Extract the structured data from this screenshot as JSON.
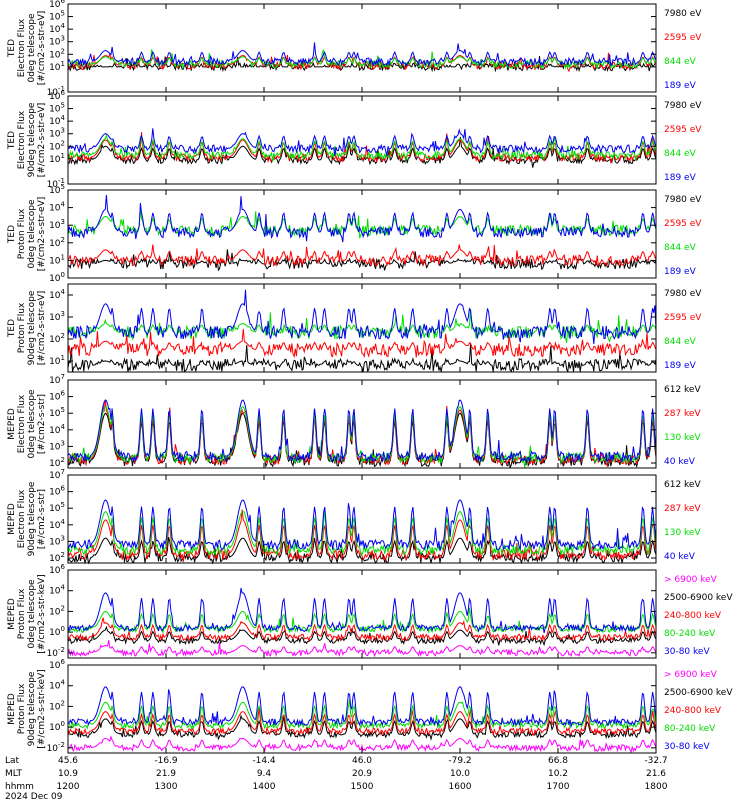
{
  "chart_data": {
    "type": "line",
    "x_axis": {
      "rows": [
        {
          "label": "Lat",
          "values": [
            "45.6",
            "-16.9",
            "-14.4",
            "46.0",
            "-79.2",
            "66.8",
            "-32.7"
          ]
        },
        {
          "label": "MLT",
          "values": [
            "10.9",
            "21.9",
            "9.4",
            "20.9",
            "10.0",
            "10.2",
            "21.6"
          ]
        },
        {
          "label": "hhmm",
          "values": [
            "1200",
            "1300",
            "1400",
            "1500",
            "1600",
            "1700",
            "1800"
          ]
        }
      ],
      "date": "2024 Dec 09",
      "xlim": [
        1200,
        1800
      ]
    },
    "panels": [
      {
        "ylabel": [
          "TED",
          "Electron Flux",
          "0deg telescope",
          "[#/cm2-s-str-eV]"
        ],
        "yticks": [
          "10^-1",
          "10^1",
          "10^2",
          "10^3",
          "10^4",
          "10^5",
          "10^6"
        ],
        "ylog": [
          -1,
          6
        ],
        "series": [
          {
            "name": "7980 eV",
            "color": "#000000",
            "base": 1.0,
            "peak": 1.0
          },
          {
            "name": "2595 eV",
            "color": "#ff0000",
            "base": 1.1,
            "peak": 1.9
          },
          {
            "name": "844 eV",
            "color": "#00dd00",
            "base": 1.2,
            "peak": 1.8
          },
          {
            "name": "189 eV",
            "color": "#0000ee",
            "base": 1.4,
            "peak": 2.3
          }
        ]
      },
      {
        "ylabel": [
          "TED",
          "Electron Flux",
          "90deg telescope",
          "[#/cm2-s-str-eV]"
        ],
        "yticks": [
          "10^-1",
          "10^1",
          "10^2",
          "10^3",
          "10^4",
          "10^5",
          "10^6"
        ],
        "ylog": [
          -1,
          6
        ],
        "series": [
          {
            "name": "7980 eV",
            "color": "#000000",
            "base": 0.9,
            "peak": 2.0
          },
          {
            "name": "2595 eV",
            "color": "#ff0000",
            "base": 1.1,
            "peak": 2.5
          },
          {
            "name": "844 eV",
            "color": "#00dd00",
            "base": 1.3,
            "peak": 2.6
          },
          {
            "name": "189 eV",
            "color": "#0000ee",
            "base": 1.8,
            "peak": 3.0
          }
        ]
      },
      {
        "ylabel": [
          "TED",
          "Proton Flux",
          "0deg telescope",
          "[#/cm2-s-str-eV]"
        ],
        "yticks": [
          "10^0",
          "10^1",
          "10^2",
          "10^3",
          "10^4",
          "10^5"
        ],
        "ylog": [
          0,
          5
        ],
        "series": [
          {
            "name": "7980 eV",
            "color": "#000000",
            "base": 0.8,
            "peak": 1.0
          },
          {
            "name": "2595 eV",
            "color": "#ff0000",
            "base": 1.0,
            "peak": 1.6
          },
          {
            "name": "844 eV",
            "color": "#00dd00",
            "base": 2.7,
            "peak": 3.5
          },
          {
            "name": "189 eV",
            "color": "#0000ee",
            "base": 2.6,
            "peak": 3.9
          }
        ]
      },
      {
        "ylabel": [
          "TED",
          "Proton Flux",
          "90deg telescope",
          "[#/cm2-s-str-eV]"
        ],
        "yticks": [
          "10^1",
          "10^2",
          "10^3",
          "10^4"
        ],
        "ylog": [
          0.5,
          4.5
        ],
        "series": [
          {
            "name": "7980 eV",
            "color": "#000000",
            "base": 0.8,
            "peak": 1.0
          },
          {
            "name": "2595 eV",
            "color": "#ff0000",
            "base": 1.5,
            "peak": 1.9
          },
          {
            "name": "844 eV",
            "color": "#00dd00",
            "base": 2.3,
            "peak": 2.7
          },
          {
            "name": "189 eV",
            "color": "#0000ee",
            "base": 2.3,
            "peak": 3.6
          }
        ]
      },
      {
        "ylabel": [
          "MEPED",
          "Electron Flux",
          "0deg telescope",
          "[#/cm2-s-str]"
        ],
        "yticks": [
          "10^2",
          "10^3",
          "10^4",
          "10^5",
          "10^6",
          "10^7"
        ],
        "ylog": [
          1.7,
          7
        ],
        "series": [
          {
            "name": "612 keV",
            "color": "#000000",
            "base": 2.1,
            "peak": 5.0
          },
          {
            "name": "287 keV",
            "color": "#ff0000",
            "base": 2.2,
            "peak": 5.2
          },
          {
            "name": "130 keV",
            "color": "#00dd00",
            "base": 2.3,
            "peak": 5.4
          },
          {
            "name": "40 keV",
            "color": "#0000ee",
            "base": 2.4,
            "peak": 5.8
          }
        ]
      },
      {
        "ylabel": [
          "MEPED",
          "Electron Flux",
          "90deg telescope",
          "[#/cm2-s-str]"
        ],
        "yticks": [
          "10^2",
          "10^3",
          "10^4",
          "10^5",
          "10^6",
          "10^7"
        ],
        "ylog": [
          1.7,
          7
        ],
        "series": [
          {
            "name": "612 keV",
            "color": "#000000",
            "base": 2.0,
            "peak": 3.2
          },
          {
            "name": "287 keV",
            "color": "#ff0000",
            "base": 2.2,
            "peak": 4.3
          },
          {
            "name": "130 keV",
            "color": "#00dd00",
            "base": 2.5,
            "peak": 4.8
          },
          {
            "name": "40 keV",
            "color": "#0000ee",
            "base": 2.8,
            "peak": 5.5
          }
        ]
      },
      {
        "ylabel": [
          "MEPED",
          "Proton Flux",
          "0deg telescope",
          "[#/cm2-s-str-keV]"
        ],
        "yticks": [
          "10^-2",
          "10^0",
          "10^2",
          "10^4",
          "10^6"
        ],
        "ylog": [
          -2.5,
          6
        ],
        "series": [
          {
            "name": "> 6900 keV",
            "color": "#ff00ff",
            "base": -2.0,
            "peak": -1.3
          },
          {
            "name": "2500-6900 keV",
            "color": "#000000",
            "base": -0.8,
            "peak": 0.2
          },
          {
            "name": "240-800 keV",
            "color": "#ff0000",
            "base": -0.5,
            "peak": 0.9
          },
          {
            "name": "80-240 keV",
            "color": "#00dd00",
            "base": 0.3,
            "peak": 2.0
          },
          {
            "name": "30-80 keV",
            "color": "#0000ee",
            "base": 0.4,
            "peak": 3.8
          }
        ]
      },
      {
        "ylabel": [
          "MEPED",
          "Proton Flux",
          "90deg telescope",
          "[#/cm2-s-str-keV]"
        ],
        "yticks": [
          "10^-2",
          "10^0",
          "10^2",
          "10^4",
          "10^6"
        ],
        "ylog": [
          -2.5,
          6
        ],
        "series": [
          {
            "name": "> 6900 keV",
            "color": "#ff00ff",
            "base": -2.0,
            "peak": -1.1
          },
          {
            "name": "2500-6900 keV",
            "color": "#000000",
            "base": -0.7,
            "peak": 0.8
          },
          {
            "name": "240-800 keV",
            "color": "#ff0000",
            "base": -0.4,
            "peak": 1.5
          },
          {
            "name": "80-240 keV",
            "color": "#00dd00",
            "base": 0.2,
            "peak": 2.4
          },
          {
            "name": "30-80 keV",
            "color": "#0000ee",
            "base": 0.5,
            "peak": 3.9
          }
        ]
      }
    ]
  }
}
